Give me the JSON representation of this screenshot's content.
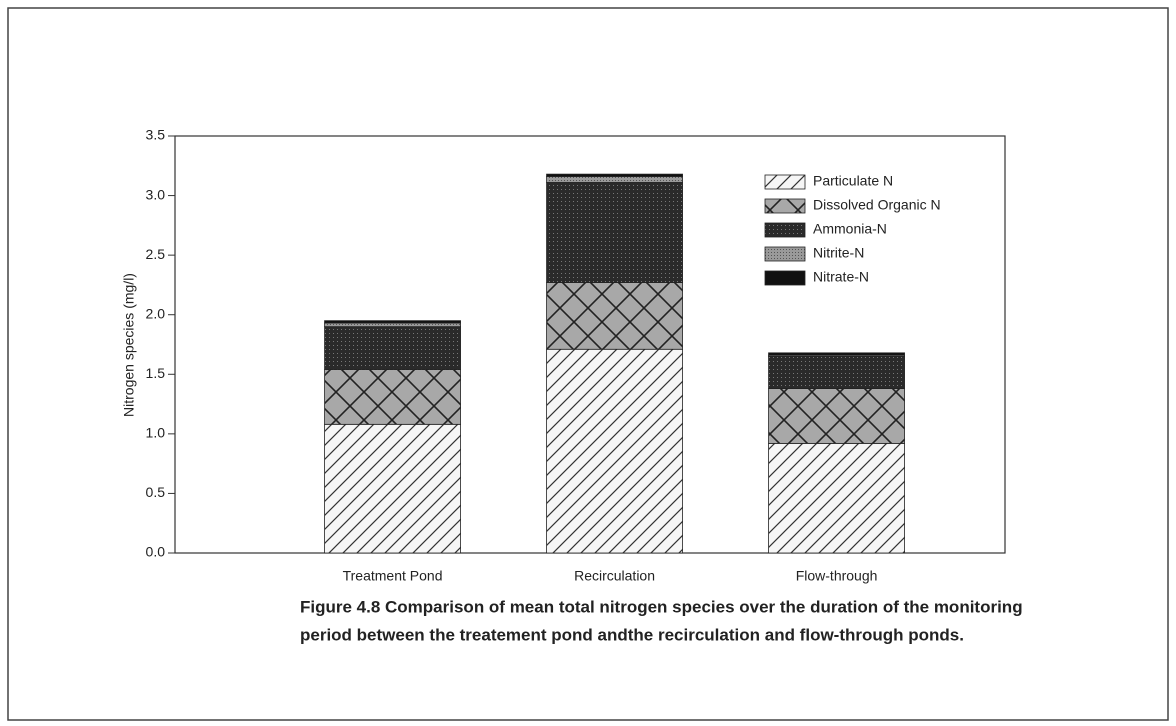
{
  "chart_data": {
    "type": "stacked-bar",
    "ylabel": "Nitrogen species (mg/l)",
    "categories": [
      "Treatment Pond",
      "Recirculation",
      "Flow-through"
    ],
    "series": [
      {
        "name": "Particulate N",
        "color": "#333333",
        "pattern": "hatch",
        "values": [
          1.08,
          1.71,
          0.92
        ]
      },
      {
        "name": "Dissolved Organic N",
        "color": "#555555",
        "pattern": "crosshatch",
        "values": [
          0.46,
          0.56,
          0.46
        ]
      },
      {
        "name": "Ammonia-N",
        "color": "#2a2a2a",
        "pattern": "dark",
        "values": [
          0.36,
          0.84,
          0.27
        ]
      },
      {
        "name": "Nitrite-N",
        "color": "#8a8a8a",
        "pattern": "grey",
        "values": [
          0.03,
          0.05,
          0.01
        ]
      },
      {
        "name": "Nitrate-N",
        "color": "#111111",
        "pattern": "solid",
        "values": [
          0.02,
          0.02,
          0.02
        ]
      }
    ],
    "ylim": [
      0,
      3.5
    ],
    "yticks": [
      {
        "value": 0,
        "label": "0.0"
      },
      0.5,
      {
        "value": 1,
        "label": "1.0"
      },
      1.5,
      {
        "value": 2,
        "label": "2.0"
      },
      2.5,
      {
        "value": 3,
        "label": "3.0"
      },
      3.5
    ],
    "legend": "upper right",
    "caption": [
      "Figure 4.8  Comparison of mean total nitrogen species over the duration of the monitoring",
      "period between the treatement pond andthe recirculation and flow-through ponds."
    ]
  }
}
